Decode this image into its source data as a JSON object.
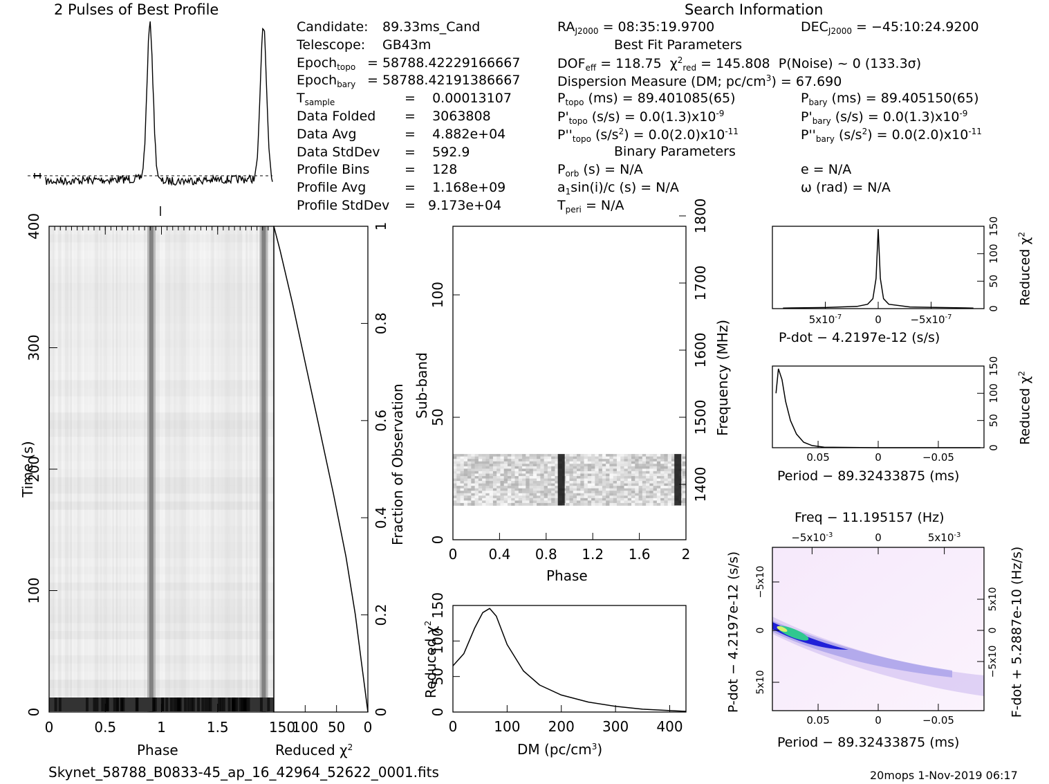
{
  "titles": {
    "profile": "2 Pulses of Best Profile",
    "search": "Search Information",
    "best_fit": "Best Fit Parameters",
    "binary": "Binary Parameters"
  },
  "info_left": [
    {
      "label": "Candidate:",
      "value": "89.33ms_Cand"
    },
    {
      "label": "Telescope:",
      "value": "GB43m"
    },
    {
      "label": "Epoch",
      "sub": "topo",
      "value": "= 58788.42229166667"
    },
    {
      "label": "Epoch",
      "sub": "bary",
      "value": "= 58788.42191386667"
    },
    {
      "label": "T",
      "sub": "sample",
      "value": "=    0.00013107"
    },
    {
      "label": "Data Folded",
      "value": "=    3063808"
    },
    {
      "label": "Data Avg",
      "value": "=    4.882e+04"
    },
    {
      "label": "Data StdDev",
      "value": "=    592.9"
    },
    {
      "label": "Profile Bins",
      "value": "=    128"
    },
    {
      "label": "Profile Avg",
      "value": "=    1.168e+09"
    },
    {
      "label": "Profile StdDev",
      "value": "=   9.173e+04"
    }
  ],
  "info_mid": {
    "ra": "RA",
    "ra_sub": "J2000",
    "ra_val": "= 08:35:19.9700",
    "dof": "DOF",
    "dof_sub": "eff",
    "dof_val": "= 118.75",
    "chi": "χ",
    "chi_sup": "2",
    "chi_sub": "red",
    "chi_val": "= 145.808",
    "pnoise": "P(Noise) ~ 0    (133.3σ)",
    "dm": "Dispersion Measure (DM; pc/cm",
    "dm_sup": "3",
    "dm_val": ") = 67.690",
    "ptopo": "P",
    "ptopo_sub": "topo",
    "ptopo_val": "(ms)  =   89.401085(65)",
    "pdtopo": "P'",
    "pdtopo_sub": "topo",
    "pdtopo_val": "(s/s) = 0.0(1.3)x10",
    "pdtopo_exp": "-9",
    "pddtopo": "P''",
    "pddtopo_sub": "topo",
    "pddtopo_val": "(s/s",
    "pddtopo_unit_sup": "2",
    "pddtopo_val2": ") = 0.0(2.0)x10",
    "pddtopo_exp": "-11",
    "porb": "P",
    "porb_sub": "orb",
    "porb_val": "(s) = N/A",
    "a1": "a",
    "a1_sub": "1",
    "a1_val": "sin(i)/c (s) = N/A",
    "tperi": "T",
    "tperi_sub": "peri",
    "tperi_val": "= N/A"
  },
  "info_right": {
    "dec": "DEC",
    "dec_sub": "J2000",
    "dec_val": "= −45:10:24.9200",
    "pbary": "P",
    "pbary_sub": "bary",
    "pbary_val": "(ms) =  89.405150(65)",
    "pdbary": "P'",
    "pdbary_sub": "bary",
    "pdbary_val": "(s/s) = 0.0(1.3)x10",
    "pdbary_exp": "-9",
    "pddbary": "P''",
    "pddbary_sub": "bary",
    "pddbary_val": "(s/s",
    "pddbary_unit_sup": "2",
    "pddbary_val2": ") = 0.0(2.0)x10",
    "pddbary_exp": "-11",
    "ecc": "e = N/A",
    "omega": "ω (rad) = N/A"
  },
  "footer": {
    "filename": "Skynet_58788_B0833-45_ap_16_42964_52622_0001.fits",
    "stamp": "20mops   1-Nov-2019 06:17"
  },
  "chart_data": [
    {
      "type": "heatmap",
      "name": "time-phase",
      "xlabel": "Phase",
      "ylabel": "Time (s)",
      "xlim": [
        0,
        2
      ],
      "ylim": [
        0,
        400
      ],
      "xticks": [
        "0",
        "0.5",
        "1",
        "1.5"
      ],
      "yticks": [
        "0",
        "100",
        "200",
        "300",
        "400"
      ],
      "pulse_phases": [
        0.91,
        1.91
      ]
    },
    {
      "type": "line",
      "name": "time-chi2",
      "xlabel": "Reduced χ",
      "xlabel_sup": "2",
      "ylabel_right": "Fraction of Observation",
      "xticks": [
        "150",
        "100",
        "50",
        "0"
      ],
      "yticks": [
        "0",
        "0.2",
        "0.4",
        "0.6",
        "0.8",
        "1"
      ],
      "x": [
        0,
        2,
        5,
        10,
        20,
        35,
        55,
        80,
        100,
        120,
        140,
        150
      ],
      "y": [
        0.0,
        0.02,
        0.05,
        0.1,
        0.2,
        0.32,
        0.45,
        0.6,
        0.72,
        0.84,
        0.95,
        1.0
      ]
    },
    {
      "type": "heatmap",
      "name": "subband-phase",
      "xlabel": "Phase",
      "ylabel": "Sub-band",
      "ylabel_right": "Frequency (MHz)",
      "xticks": [
        "0",
        "0.4",
        "0.8",
        "1.2",
        "1.6",
        "2"
      ],
      "yticks": [
        "0",
        "50",
        "100"
      ],
      "yticks_right": [
        "1400",
        "1500",
        "1600",
        "1700",
        "1800"
      ],
      "active_subbands": [
        14,
        35
      ],
      "pulse_phases": [
        0.93,
        1.93
      ]
    },
    {
      "type": "line",
      "name": "dm-chi2",
      "xlabel": "DM (pc/cm",
      "xlabel_sup": "3",
      "xlabel_end": ")",
      "ylabel": "Reduced χ",
      "ylabel_sup": "2",
      "xticks": [
        "0",
        "100",
        "200",
        "300",
        "400"
      ],
      "yticks": [
        "0",
        "50",
        "100",
        "150"
      ],
      "x": [
        0,
        20,
        40,
        55,
        67.69,
        80,
        100,
        130,
        160,
        200,
        250,
        300,
        350,
        400,
        430
      ],
      "y": [
        65,
        82,
        118,
        140,
        145.8,
        135,
        95,
        58,
        38,
        24,
        14,
        8,
        4,
        2,
        1
      ]
    },
    {
      "type": "line",
      "name": "pdot-chi2",
      "xlabel": "P-dot − 4.2197e-12 (s/s)",
      "ylabel_right": "Reduced χ",
      "ylabel_sup": "2",
      "xticks": [
        "5x10",
        "0",
        "−5x10"
      ],
      "xtick_exp": "-7",
      "yticks": [
        "0",
        "50",
        "100",
        "150"
      ],
      "x": [
        0.9,
        0.5,
        0.2,
        0.1,
        0.05,
        0.02,
        0,
        -0.02,
        -0.05,
        -0.1,
        -0.3,
        -0.9
      ],
      "y": [
        1,
        2,
        4,
        8,
        18,
        55,
        145,
        55,
        18,
        8,
        3,
        1
      ]
    },
    {
      "type": "line",
      "name": "period-chi2",
      "xlabel": "Period − 89.32433875 (ms)",
      "ylabel_right": "Reduced χ",
      "ylabel_sup": "2",
      "xticks": [
        "0.05",
        "0",
        "−0.05"
      ],
      "yticks": [
        "0",
        "50",
        "100",
        "150"
      ],
      "x": [
        0.085,
        0.083,
        0.08,
        0.077,
        0.073,
        0.068,
        0.062,
        0.055,
        0.045,
        0.0,
        -0.085
      ],
      "y": [
        100,
        145,
        125,
        85,
        50,
        25,
        10,
        4,
        1,
        0,
        0
      ]
    },
    {
      "type": "heatmap",
      "name": "period-pdot",
      "title": "Freq − 11.195157 (Hz)",
      "xlabel": "Period − 89.32433875 (ms)",
      "ylabel": "P-dot − 4.2197e-12 (s/s)",
      "ylabel_right": "F-dot + 5.2887e-10 (Hz/s)",
      "xticks": [
        "0.05",
        "0",
        "−0.05"
      ],
      "top_ticks": [
        "−5x10",
        "0",
        "5x10"
      ],
      "top_exp": "-3"
    },
    {
      "type": "line",
      "name": "profile",
      "title": "2 Pulses of Best Profile",
      "pulse_phases": [
        0.92,
        1.92
      ]
    }
  ]
}
